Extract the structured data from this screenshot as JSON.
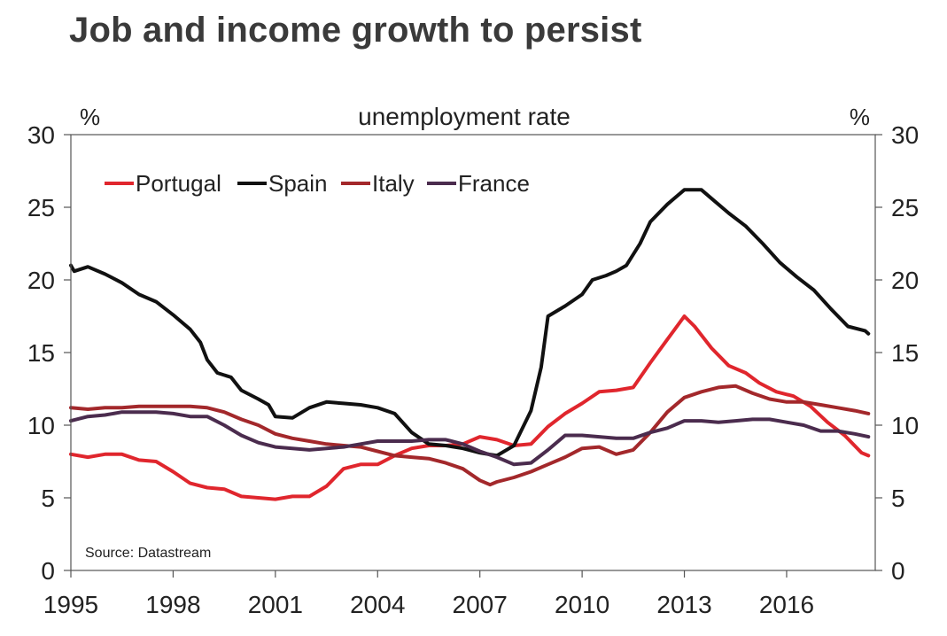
{
  "title": "Job and income growth to persist",
  "chart_data": {
    "type": "line",
    "chart_title": "unemployment rate",
    "unit_left": "%",
    "unit_right": "%",
    "source": "Source: Datastream",
    "xlim": [
      1995,
      2018.6
    ],
    "ylim": [
      0,
      30
    ],
    "x_ticks": [
      1995,
      1998,
      2001,
      2004,
      2007,
      2010,
      2013,
      2016
    ],
    "y_ticks": [
      0,
      5,
      10,
      15,
      20,
      25,
      30
    ],
    "legend": [
      "Portugal",
      "Spain",
      "Italy",
      "France"
    ],
    "series": [
      {
        "name": "Portugal",
        "color": "#e0262d",
        "points": [
          [
            1995,
            8.0
          ],
          [
            1995.5,
            7.8
          ],
          [
            1996,
            8.0
          ],
          [
            1996.5,
            8.0
          ],
          [
            1997,
            7.6
          ],
          [
            1997.5,
            7.5
          ],
          [
            1998,
            6.8
          ],
          [
            1998.5,
            6.0
          ],
          [
            1999,
            5.7
          ],
          [
            1999.5,
            5.6
          ],
          [
            2000,
            5.1
          ],
          [
            2000.5,
            5.0
          ],
          [
            2001,
            4.9
          ],
          [
            2001.5,
            5.1
          ],
          [
            2002,
            5.1
          ],
          [
            2002.5,
            5.8
          ],
          [
            2003,
            7.0
          ],
          [
            2003.5,
            7.3
          ],
          [
            2004,
            7.3
          ],
          [
            2004.5,
            7.9
          ],
          [
            2005,
            8.4
          ],
          [
            2005.5,
            8.6
          ],
          [
            2006,
            8.6
          ],
          [
            2006.5,
            8.7
          ],
          [
            2007,
            9.2
          ],
          [
            2007.5,
            9.0
          ],
          [
            2008,
            8.6
          ],
          [
            2008.5,
            8.7
          ],
          [
            2009,
            9.9
          ],
          [
            2009.5,
            10.8
          ],
          [
            2010,
            11.5
          ],
          [
            2010.5,
            12.3
          ],
          [
            2011,
            12.4
          ],
          [
            2011.5,
            12.6
          ],
          [
            2012,
            14.3
          ],
          [
            2012.5,
            15.9
          ],
          [
            2013,
            17.5
          ],
          [
            2013.3,
            16.8
          ],
          [
            2013.8,
            15.3
          ],
          [
            2014.3,
            14.1
          ],
          [
            2014.8,
            13.6
          ],
          [
            2015.2,
            12.9
          ],
          [
            2015.7,
            12.3
          ],
          [
            2016.2,
            12.0
          ],
          [
            2016.7,
            11.3
          ],
          [
            2017.2,
            10.2
          ],
          [
            2017.7,
            9.3
          ],
          [
            2018.2,
            8.1
          ],
          [
            2018.4,
            7.9
          ]
        ]
      },
      {
        "name": "Spain",
        "color": "#111111",
        "points": [
          [
            1995,
            21.0
          ],
          [
            1995.1,
            20.6
          ],
          [
            1995.5,
            20.9
          ],
          [
            1996,
            20.4
          ],
          [
            1996.5,
            19.8
          ],
          [
            1997,
            19.0
          ],
          [
            1997.5,
            18.5
          ],
          [
            1998,
            17.6
          ],
          [
            1998.5,
            16.6
          ],
          [
            1998.8,
            15.7
          ],
          [
            1999,
            14.5
          ],
          [
            1999.3,
            13.6
          ],
          [
            1999.7,
            13.3
          ],
          [
            2000,
            12.4
          ],
          [
            2000.5,
            11.8
          ],
          [
            2000.8,
            11.4
          ],
          [
            2001,
            10.6
          ],
          [
            2001.5,
            10.5
          ],
          [
            2002,
            11.2
          ],
          [
            2002.5,
            11.6
          ],
          [
            2003,
            11.5
          ],
          [
            2003.5,
            11.4
          ],
          [
            2004,
            11.2
          ],
          [
            2004.5,
            10.8
          ],
          [
            2005,
            9.5
          ],
          [
            2005.5,
            8.7
          ],
          [
            2006,
            8.6
          ],
          [
            2006.5,
            8.4
          ],
          [
            2007,
            8.1
          ],
          [
            2007.5,
            7.9
          ],
          [
            2008,
            8.6
          ],
          [
            2008.5,
            11.0
          ],
          [
            2008.8,
            14.0
          ],
          [
            2009,
            17.5
          ],
          [
            2009.5,
            18.2
          ],
          [
            2010,
            19.0
          ],
          [
            2010.3,
            20.0
          ],
          [
            2010.7,
            20.3
          ],
          [
            2011,
            20.6
          ],
          [
            2011.3,
            21.0
          ],
          [
            2011.7,
            22.5
          ],
          [
            2012,
            24.0
          ],
          [
            2012.5,
            25.2
          ],
          [
            2013,
            26.2
          ],
          [
            2013.5,
            26.2
          ],
          [
            2013.8,
            25.6
          ],
          [
            2014.3,
            24.6
          ],
          [
            2014.8,
            23.7
          ],
          [
            2015.3,
            22.5
          ],
          [
            2015.8,
            21.2
          ],
          [
            2016.3,
            20.2
          ],
          [
            2016.8,
            19.3
          ],
          [
            2017.3,
            18.0
          ],
          [
            2017.8,
            16.8
          ],
          [
            2018.3,
            16.5
          ],
          [
            2018.4,
            16.3
          ]
        ]
      },
      {
        "name": "Italy",
        "color": "#a3282b",
        "points": [
          [
            1995,
            11.2
          ],
          [
            1995.5,
            11.1
          ],
          [
            1996,
            11.2
          ],
          [
            1996.5,
            11.2
          ],
          [
            1997,
            11.3
          ],
          [
            1997.5,
            11.3
          ],
          [
            1998,
            11.3
          ],
          [
            1998.5,
            11.3
          ],
          [
            1999,
            11.2
          ],
          [
            1999.5,
            10.9
          ],
          [
            2000,
            10.4
          ],
          [
            2000.5,
            10.0
          ],
          [
            2001,
            9.4
          ],
          [
            2001.5,
            9.1
          ],
          [
            2002,
            8.9
          ],
          [
            2002.5,
            8.7
          ],
          [
            2003,
            8.6
          ],
          [
            2003.5,
            8.5
          ],
          [
            2004,
            8.2
          ],
          [
            2004.5,
            7.9
          ],
          [
            2005,
            7.8
          ],
          [
            2005.5,
            7.7
          ],
          [
            2006,
            7.4
          ],
          [
            2006.5,
            7.0
          ],
          [
            2007,
            6.2
          ],
          [
            2007.3,
            5.9
          ],
          [
            2007.5,
            6.1
          ],
          [
            2008,
            6.4
          ],
          [
            2008.5,
            6.8
          ],
          [
            2009,
            7.3
          ],
          [
            2009.5,
            7.8
          ],
          [
            2010,
            8.4
          ],
          [
            2010.5,
            8.5
          ],
          [
            2011,
            8.0
          ],
          [
            2011.5,
            8.3
          ],
          [
            2012,
            9.5
          ],
          [
            2012.5,
            10.9
          ],
          [
            2013,
            11.9
          ],
          [
            2013.5,
            12.3
          ],
          [
            2014,
            12.6
          ],
          [
            2014.5,
            12.7
          ],
          [
            2015,
            12.2
          ],
          [
            2015.5,
            11.8
          ],
          [
            2016,
            11.6
          ],
          [
            2016.5,
            11.6
          ],
          [
            2017,
            11.4
          ],
          [
            2017.5,
            11.2
          ],
          [
            2018,
            11.0
          ],
          [
            2018.4,
            10.8
          ]
        ]
      },
      {
        "name": "France",
        "color": "#4b2c4e",
        "points": [
          [
            1995,
            10.3
          ],
          [
            1995.5,
            10.6
          ],
          [
            1996,
            10.7
          ],
          [
            1996.5,
            10.9
          ],
          [
            1997,
            10.9
          ],
          [
            1997.5,
            10.9
          ],
          [
            1998,
            10.8
          ],
          [
            1998.5,
            10.6
          ],
          [
            1999,
            10.6
          ],
          [
            1999.5,
            10.0
          ],
          [
            2000,
            9.3
          ],
          [
            2000.5,
            8.8
          ],
          [
            2001,
            8.5
          ],
          [
            2001.5,
            8.4
          ],
          [
            2002,
            8.3
          ],
          [
            2002.5,
            8.4
          ],
          [
            2003,
            8.5
          ],
          [
            2003.5,
            8.7
          ],
          [
            2004,
            8.9
          ],
          [
            2004.5,
            8.9
          ],
          [
            2005,
            8.9
          ],
          [
            2005.5,
            9.0
          ],
          [
            2006,
            9.0
          ],
          [
            2006.5,
            8.7
          ],
          [
            2007,
            8.2
          ],
          [
            2007.5,
            7.8
          ],
          [
            2008,
            7.3
          ],
          [
            2008.5,
            7.4
          ],
          [
            2009,
            8.3
          ],
          [
            2009.5,
            9.3
          ],
          [
            2010,
            9.3
          ],
          [
            2010.5,
            9.2
          ],
          [
            2011,
            9.1
          ],
          [
            2011.5,
            9.1
          ],
          [
            2012,
            9.5
          ],
          [
            2012.5,
            9.8
          ],
          [
            2013,
            10.3
          ],
          [
            2013.5,
            10.3
          ],
          [
            2014,
            10.2
          ],
          [
            2014.5,
            10.3
          ],
          [
            2015,
            10.4
          ],
          [
            2015.5,
            10.4
          ],
          [
            2016,
            10.2
          ],
          [
            2016.5,
            10.0
          ],
          [
            2017,
            9.6
          ],
          [
            2017.5,
            9.6
          ],
          [
            2018,
            9.4
          ],
          [
            2018.4,
            9.2
          ]
        ]
      }
    ]
  }
}
